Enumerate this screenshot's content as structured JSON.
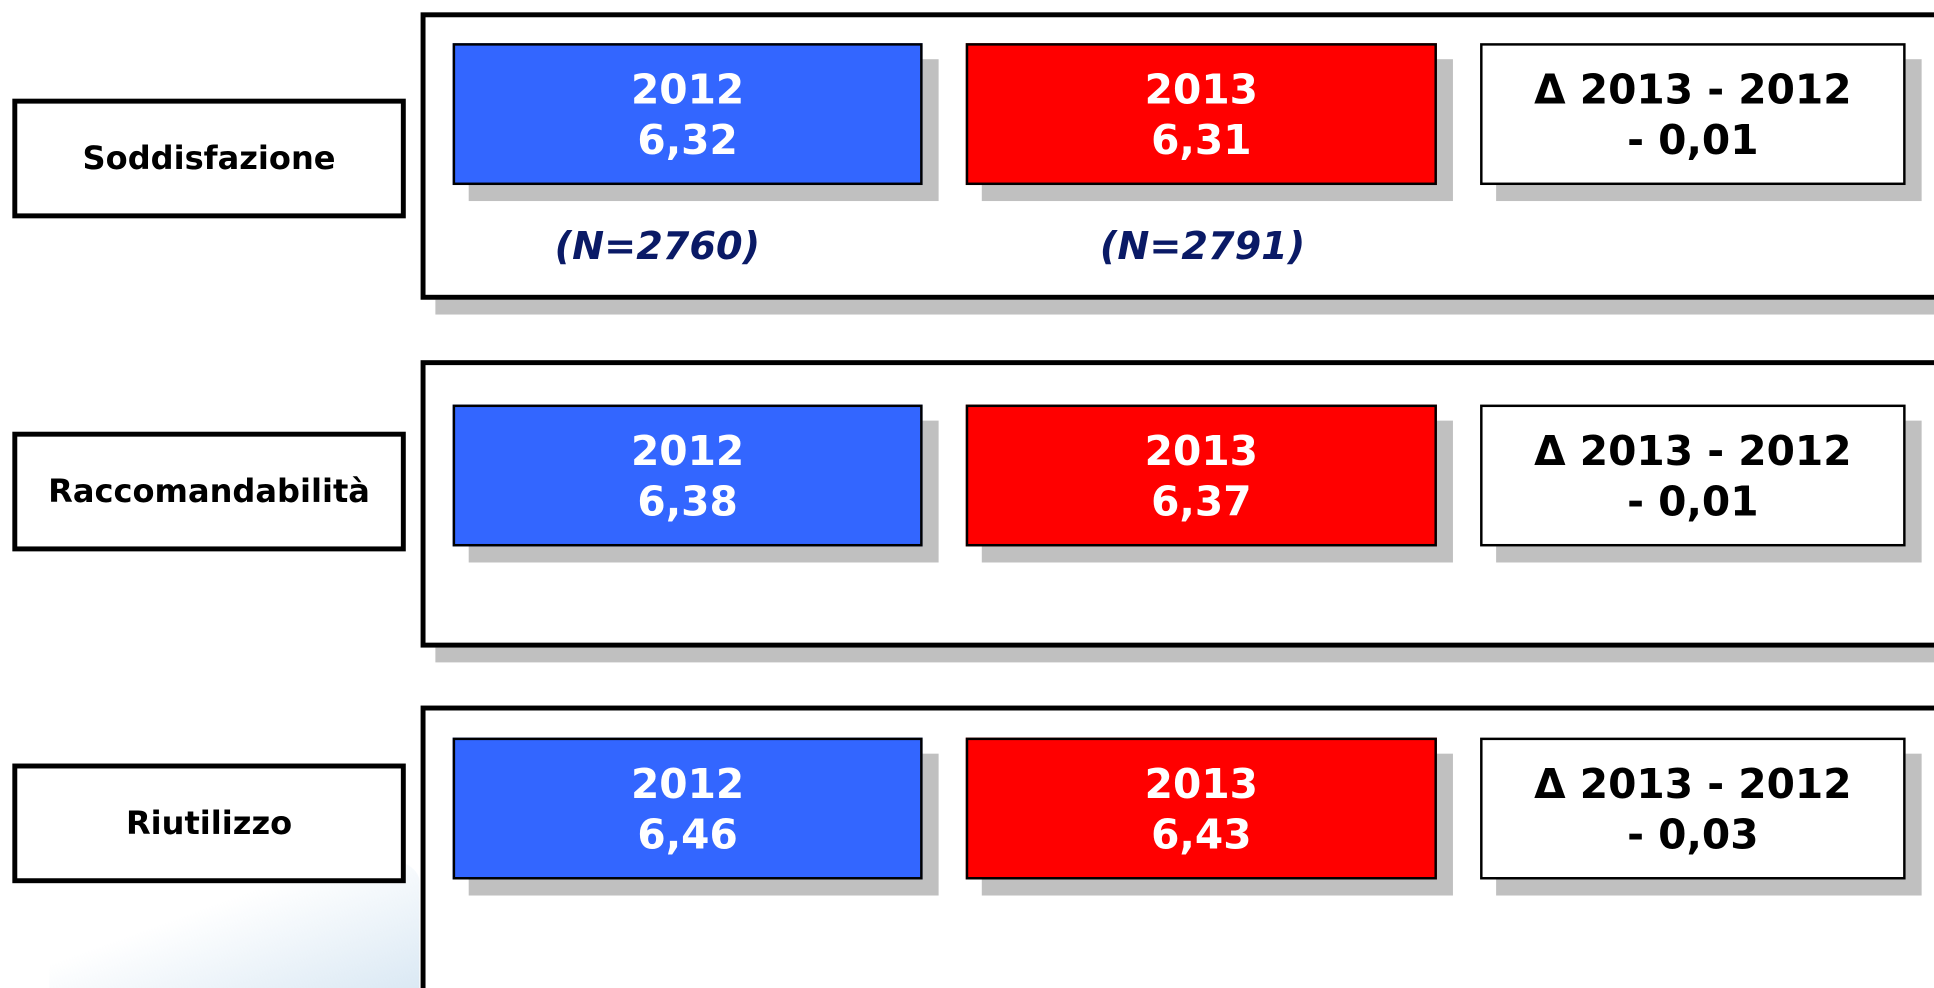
{
  "rows": [
    {
      "label": "Soddisfazione",
      "boxes": [
        {
          "title": "2012",
          "value": "6,32"
        },
        {
          "title": "2013",
          "value": "6,31"
        },
        {
          "title": "Δ 2013 - 2012",
          "value": "- 0,01"
        }
      ],
      "notes": [
        "(N=2760)",
        "(N=2791)"
      ]
    },
    {
      "label": "Raccomandabilità",
      "boxes": [
        {
          "title": "2012",
          "value": "6,38"
        },
        {
          "title": "2013",
          "value": "6,37"
        },
        {
          "title": "Δ 2013 - 2012",
          "value": "- 0,01"
        }
      ]
    },
    {
      "label": "Riutilizzo",
      "boxes": [
        {
          "title": "2012",
          "value": "6,46"
        },
        {
          "title": "2013",
          "value": "6,43"
        },
        {
          "title": "Δ 2013 - 2012",
          "value": "- 0,03"
        }
      ]
    }
  ]
}
